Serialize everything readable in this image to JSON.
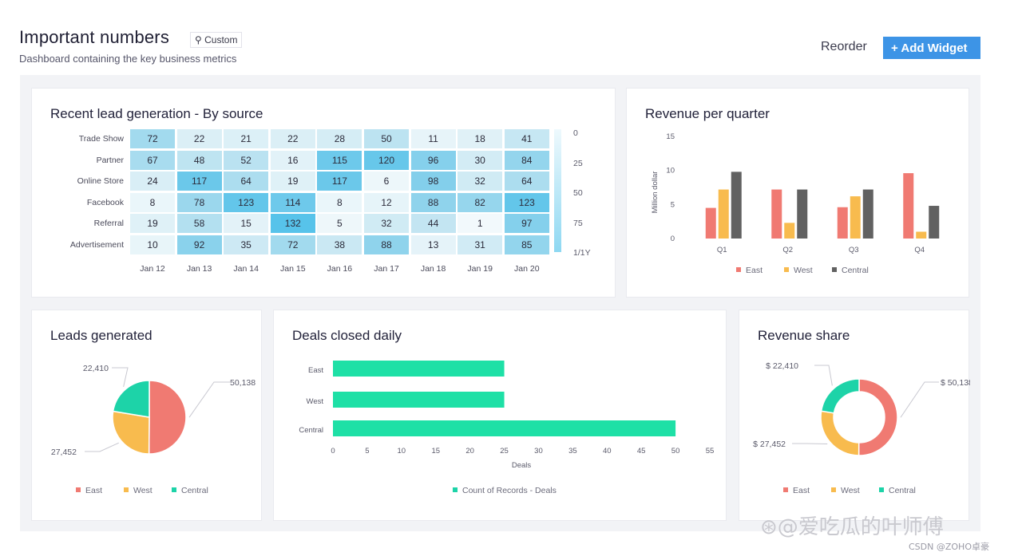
{
  "header": {
    "title": "Important numbers",
    "custom_badge": "⚲ Custom",
    "subtitle": "Dashboard containing the key business metrics",
    "reorder_label": "Reorder",
    "add_widget_label": "+ Add Widget"
  },
  "colors": {
    "accent": "#3d94e6",
    "east": "#f07a72",
    "west": "#f8bb4e",
    "central": "#1dd3a8",
    "central_bar": "#616161",
    "deals_bar": "#1ee0a6"
  },
  "widgets": {
    "lead_generation": {
      "title": "Recent lead generation - By source"
    },
    "revenue_quarter": {
      "title": "Revenue per quarter"
    },
    "leads_generated": {
      "title": "Leads generated"
    },
    "deals_closed": {
      "title": "Deals closed daily"
    },
    "revenue_share": {
      "title": "Revenue share"
    }
  },
  "chart_data": [
    {
      "id": "lead_generation",
      "type": "heatmap",
      "title": "Recent lead generation - By source",
      "rows": [
        "Trade Show",
        "Partner",
        "Online Store",
        "Facebook",
        "Referral",
        "Advertisement"
      ],
      "columns": [
        "Jan 12",
        "Jan 13",
        "Jan 14",
        "Jan 15",
        "Jan 16",
        "Jan 17",
        "Jan 18",
        "Jan 19",
        "Jan 20"
      ],
      "values": [
        [
          72,
          22,
          21,
          22,
          28,
          50,
          11,
          18,
          41
        ],
        [
          67,
          48,
          52,
          16,
          115,
          120,
          96,
          30,
          84
        ],
        [
          24,
          117,
          64,
          19,
          117,
          6,
          98,
          32,
          64
        ],
        [
          8,
          78,
          123,
          114,
          8,
          12,
          88,
          82,
          123
        ],
        [
          19,
          58,
          15,
          132,
          5,
          32,
          44,
          1,
          97
        ],
        [
          10,
          92,
          35,
          72,
          38,
          88,
          13,
          31,
          85
        ]
      ],
      "scale_ticks": [
        "0",
        "25",
        "50",
        "75",
        "1/1Y"
      ]
    },
    {
      "id": "revenue_quarter",
      "type": "bar",
      "title": "Revenue per quarter",
      "ylabel": "Million dollar",
      "ylim": [
        0,
        15
      ],
      "yticks": [
        0,
        5,
        10,
        15
      ],
      "categories": [
        "Q1",
        "Q2",
        "Q3",
        "Q4"
      ],
      "series": [
        {
          "name": "East",
          "values": [
            4.5,
            7.2,
            4.6,
            9.6
          ]
        },
        {
          "name": "West",
          "values": [
            7.2,
            2.3,
            6.2,
            1.0
          ]
        },
        {
          "name": "Central",
          "values": [
            9.8,
            7.2,
            7.2,
            4.8
          ]
        }
      ],
      "legend": [
        "East",
        "West",
        "Central"
      ]
    },
    {
      "id": "leads_generated",
      "type": "pie",
      "title": "Leads generated",
      "slices": [
        {
          "name": "East",
          "value": 50138,
          "label": "50,138"
        },
        {
          "name": "West",
          "value": 27452,
          "label": "27,452"
        },
        {
          "name": "Central",
          "value": 22410,
          "label": "22,410"
        }
      ],
      "legend": [
        "East",
        "West",
        "Central"
      ]
    },
    {
      "id": "deals_closed",
      "type": "bar",
      "orientation": "horizontal",
      "title": "Deals closed daily",
      "xlabel": "Deals",
      "categories": [
        "East",
        "West",
        "Central"
      ],
      "values": [
        25,
        25,
        50
      ],
      "xlim": [
        0,
        55
      ],
      "xticks": [
        0,
        5,
        10,
        15,
        20,
        25,
        30,
        35,
        40,
        45,
        50,
        55
      ],
      "legend": [
        "Count of Records - Deals"
      ]
    },
    {
      "id": "revenue_share",
      "type": "pie",
      "donut": true,
      "title": "Revenue share",
      "slices": [
        {
          "name": "East",
          "value": 50138,
          "label": "$ 50,138"
        },
        {
          "name": "West",
          "value": 27452,
          "label": "$ 27,452"
        },
        {
          "name": "Central",
          "value": 22410,
          "label": "$ 22,410"
        }
      ],
      "legend": [
        "East",
        "West",
        "Central"
      ]
    }
  ],
  "watermark": "⊛@爱吃瓜的叶师傅",
  "credit": "CSDN @ZOHO卓豪"
}
